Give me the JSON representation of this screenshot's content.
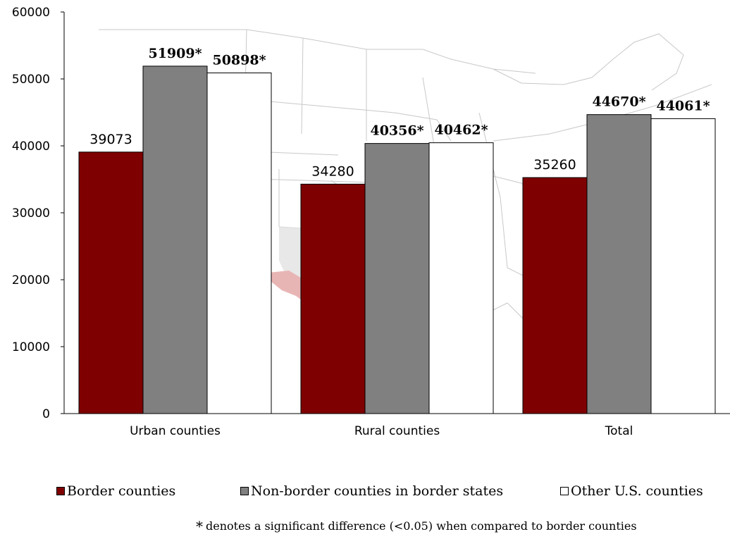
{
  "chart_data": {
    "type": "bar",
    "categories": [
      "Urban counties",
      "Rural counties",
      "Total"
    ],
    "series": [
      {
        "name": "Border counties",
        "values": [
          39073,
          34280,
          35260
        ],
        "labels": [
          "39073",
          "34280",
          "35260"
        ],
        "significant": [
          false,
          false,
          false
        ],
        "color": "#7f0000"
      },
      {
        "name": "Non-border counties in border states",
        "values": [
          51909,
          40356,
          44670
        ],
        "labels": [
          "51909*",
          "40356*",
          "44670*"
        ],
        "significant": [
          true,
          true,
          true
        ],
        "color": "#808080"
      },
      {
        "name": "Other U.S. counties",
        "values": [
          50898,
          40462,
          44061
        ],
        "labels": [
          "50898*",
          "40462*",
          "44061*"
        ],
        "significant": [
          true,
          true,
          true
        ],
        "color": "#ffffff"
      }
    ],
    "ylim": [
      0,
      60000
    ],
    "yticks": [
      "0",
      "10000",
      "20000",
      "30000",
      "40000",
      "50000",
      "60000"
    ],
    "title": "",
    "xlabel": "",
    "ylabel": "",
    "grid": false,
    "legend_position": "bottom",
    "background": "faded map of the United States"
  },
  "legend": [
    {
      "label": "Border counties",
      "color": "#7f0000"
    },
    {
      "label": "Non-border counties in border states",
      "color": "#808080"
    },
    {
      "label": "Other U.S. counties",
      "color": "#ffffff"
    }
  ],
  "footnote": {
    "symbol": "*",
    "text": "denotes a significant difference (<0.05) when compared to border counties"
  }
}
